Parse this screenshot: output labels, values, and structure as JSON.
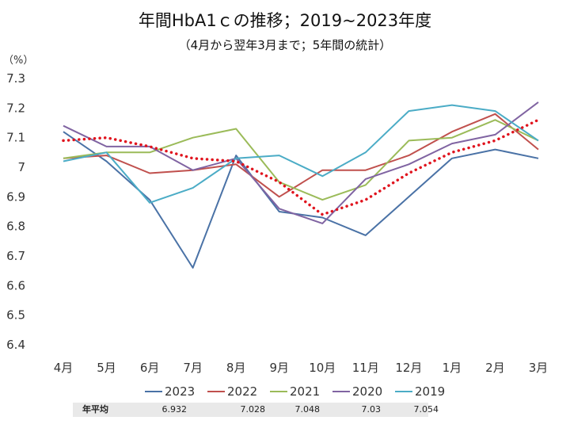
{
  "chart_data": {
    "type": "line",
    "title": "年間HbA1ｃの推移；2019~2023年度",
    "subtitle": "（4月から翌年3月まで；5年間の統計）",
    "ylabel": "（%）",
    "ylim": [
      6.4,
      7.3
    ],
    "yticks": [
      "6.4",
      "6.5",
      "6.6",
      "6.7",
      "6.8",
      "6.9",
      "7",
      "7.1",
      "7.2",
      "7.3"
    ],
    "categories": [
      "4月",
      "5月",
      "6月",
      "7月",
      "8月",
      "9月",
      "10月",
      "11月",
      "12月",
      "1月",
      "2月",
      "3月"
    ],
    "grid": false,
    "legend_position": "bottom",
    "series": [
      {
        "name": "2023",
        "color": "#4a72a6",
        "values": [
          7.12,
          7.02,
          6.89,
          6.66,
          7.04,
          6.85,
          6.83,
          6.77,
          6.9,
          7.03,
          7.06,
          7.03
        ]
      },
      {
        "name": "2022",
        "color": "#c0504d",
        "values": [
          7.03,
          7.04,
          6.98,
          6.99,
          7.01,
          6.9,
          6.99,
          6.99,
          7.04,
          7.12,
          7.18,
          7.06
        ]
      },
      {
        "name": "2021",
        "color": "#9bbb59",
        "values": [
          7.03,
          7.05,
          7.05,
          7.1,
          7.13,
          6.95,
          6.89,
          6.94,
          7.09,
          7.1,
          7.16,
          7.09
        ]
      },
      {
        "name": "2020",
        "color": "#8064a2",
        "values": [
          7.14,
          7.07,
          7.07,
          6.99,
          7.03,
          6.86,
          6.81,
          6.96,
          7.01,
          7.08,
          7.11,
          7.22
        ]
      },
      {
        "name": "2019",
        "color": "#4bacc6",
        "values": [
          7.02,
          7.05,
          6.88,
          6.93,
          7.03,
          7.04,
          6.97,
          7.05,
          7.19,
          7.21,
          7.19,
          7.09
        ]
      }
    ],
    "trend": {
      "color": "#e0141e",
      "style": "dotted",
      "values": [
        7.09,
        7.1,
        7.07,
        7.03,
        7.02,
        6.95,
        6.84,
        6.89,
        6.98,
        7.05,
        7.09,
        7.16
      ]
    }
  },
  "avg_table": {
    "label": "年平均",
    "values": [
      "6.932",
      "7.028",
      "7.048",
      "7.03",
      "7.054"
    ]
  }
}
